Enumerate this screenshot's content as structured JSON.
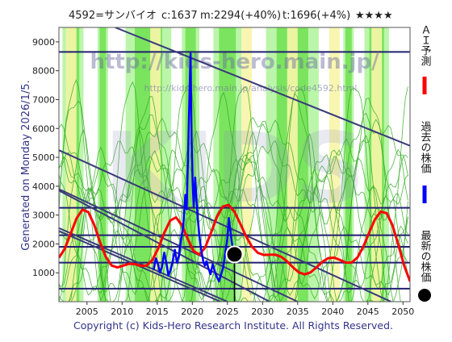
{
  "header": {
    "code_name": "4592=サンバイオ",
    "current": "c:1637",
    "max": "m:2294(+40%)",
    "target": "t:1696(+4%)",
    "stars": "★★★★"
  },
  "side_label": "Generated on Monday 2026/1/5.",
  "watermark": {
    "url": "http://kids-hero.main.jp/",
    "sub_url": "http://kids-hero.main.jp/analysis/code4592.html",
    "big": "KIDS"
  },
  "legend": [
    {
      "label": "ＡＩ予測",
      "color": "#ff0000",
      "kind": "line"
    },
    {
      "label": "過去の株価",
      "color": "#0000ff",
      "kind": "line"
    },
    {
      "label": "最新の株価",
      "color": "#000000",
      "kind": "dot"
    }
  ],
  "footer": "Copyright (c) Kids-Hero Research Institute. All Rights Reserved.",
  "colors": {
    "plot_bg": "#ffffff",
    "green_band": "#66dd44",
    "light_green_band": "#bbf5aa",
    "yellow_band": "#f7f5a8",
    "grid_line": "#202070",
    "trend_line": "#3a3a7a",
    "ai_line": "#ff0000",
    "past_line": "#0000ff",
    "sim_line": "#33aa22",
    "title_text": "#202020",
    "axis_text": "#333388"
  },
  "chart_data": {
    "type": "line",
    "xlim": [
      2001,
      2051
    ],
    "ylim": [
      0,
      9500
    ],
    "x_ticks": [
      2005,
      2010,
      2015,
      2020,
      2025,
      2030,
      2035,
      2040,
      2045,
      2050
    ],
    "y_ticks": [
      1000,
      2000,
      3000,
      4000,
      5000,
      6000,
      7000,
      8000,
      9000
    ],
    "horizontal_levels": [
      8650,
      3250,
      2300,
      1900,
      1350,
      450
    ],
    "latest_point": {
      "x": 2026.0,
      "y": 1637
    },
    "trend_lines": [
      {
        "x": [
          2009.0,
          2051.0
        ],
        "y": [
          9500,
          5400
        ]
      },
      {
        "x": [
          2001.0,
          2051.0
        ],
        "y": [
          5250,
          -300
        ]
      },
      {
        "x": [
          2001.0,
          2035.0
        ],
        "y": [
          3900,
          0
        ]
      },
      {
        "x": [
          2001.0,
          2031.0
        ],
        "y": [
          3850,
          0
        ]
      },
      {
        "x": [
          2001.0,
          2025.0
        ],
        "y": [
          2550,
          0
        ]
      },
      {
        "x": [
          2001.0,
          2024.0
        ],
        "y": [
          2450,
          0
        ]
      }
    ],
    "green_bands": [
      [
        2001.5,
        2004.5
      ],
      [
        2006.5,
        2008.0
      ],
      [
        2010.5,
        2017.0
      ],
      [
        2018.5,
        2021.0
      ],
      [
        2023.0,
        2027.0
      ],
      [
        2030.5,
        2038.0
      ],
      [
        2041.5,
        2043.0
      ],
      [
        2044.5,
        2048.0
      ]
    ],
    "yellow_bands": [
      [
        2002.0,
        2003.5
      ],
      [
        2014.0,
        2015.5
      ],
      [
        2027.0,
        2028.5
      ],
      [
        2033.5,
        2035.0
      ],
      [
        2039.5,
        2041.0
      ],
      [
        2045.5,
        2047.0
      ]
    ],
    "series": [
      {
        "name": "ＡＩ予測",
        "x": [
          2001.0,
          2001.83,
          2002.67,
          2003.5,
          2004.33,
          2005.17,
          2006.0,
          2006.83,
          2007.67,
          2008.5,
          2009.33,
          2010.17,
          2011.0,
          2011.83,
          2012.67,
          2013.5,
          2014.33,
          2015.17,
          2016.0,
          2016.83,
          2017.67,
          2018.5,
          2019.33,
          2020.17,
          2021.0,
          2021.83,
          2022.67,
          2023.5,
          2024.33,
          2025.17,
          2026.0,
          2026.83,
          2027.67,
          2028.5,
          2029.33,
          2030.17,
          2031.0,
          2031.83,
          2032.67,
          2033.5,
          2034.33,
          2035.17,
          2036.0,
          2036.83,
          2037.67,
          2038.5,
          2039.33,
          2040.17,
          2041.0,
          2041.83,
          2042.67,
          2043.5,
          2044.33,
          2045.17,
          2046.0,
          2046.83,
          2047.67,
          2048.5,
          2049.33,
          2050.17,
          2051.0
        ],
        "y": [
          1524,
          1830,
          2353,
          2884,
          3184,
          3108,
          2680,
          2083,
          1556,
          1253,
          1185,
          1250,
          1313,
          1300,
          1241,
          1253,
          1449,
          1861,
          2383,
          2804,
          2919,
          2664,
          2183,
          1756,
          1629,
          1879,
          2392,
          2936,
          3295,
          3351,
          3114,
          2698,
          2253,
          1899,
          1691,
          1619,
          1625,
          1626,
          1554,
          1393,
          1187,
          1013,
          945,
          1013,
          1185,
          1378,
          1507,
          1526,
          1449,
          1355,
          1353,
          1528,
          1897,
          2386,
          2851,
          3121,
          3065,
          2650,
          1973,
          1243,
          705
        ]
      },
      {
        "name": "過去の株価",
        "x": [
          2014.5,
          2014.8,
          2015.1,
          2015.4,
          2015.7,
          2016.0,
          2016.3,
          2016.6,
          2016.9,
          2017.2,
          2017.5,
          2017.8,
          2018.1,
          2018.4,
          2018.7,
          2019.0,
          2019.2,
          2019.4,
          2019.6,
          2019.75,
          2019.9,
          2020.05,
          2020.2,
          2020.4,
          2020.6,
          2020.8,
          2021.0,
          2021.2,
          2021.4,
          2021.6,
          2021.8,
          2022.0,
          2022.3,
          2022.6,
          2022.9,
          2023.2,
          2023.5,
          2023.8,
          2024.1,
          2024.4,
          2024.7,
          2025.0,
          2025.2,
          2025.4,
          2025.6,
          2025.8,
          2026.0
        ],
        "y": [
          1100,
          1500,
          1300,
          1000,
          1250,
          1700,
          1350,
          900,
          1100,
          1400,
          1800,
          1350,
          1600,
          2200,
          2600,
          3700,
          3200,
          5200,
          7200,
          8600,
          5600,
          4100,
          3300,
          4300,
          3500,
          2800,
          2300,
          1900,
          1600,
          1350,
          1250,
          1400,
          1150,
          950,
          1300,
          1050,
          850,
          700,
          950,
          1200,
          1700,
          2200,
          2900,
          2500,
          2100,
          1800,
          1637
        ]
      }
    ]
  }
}
